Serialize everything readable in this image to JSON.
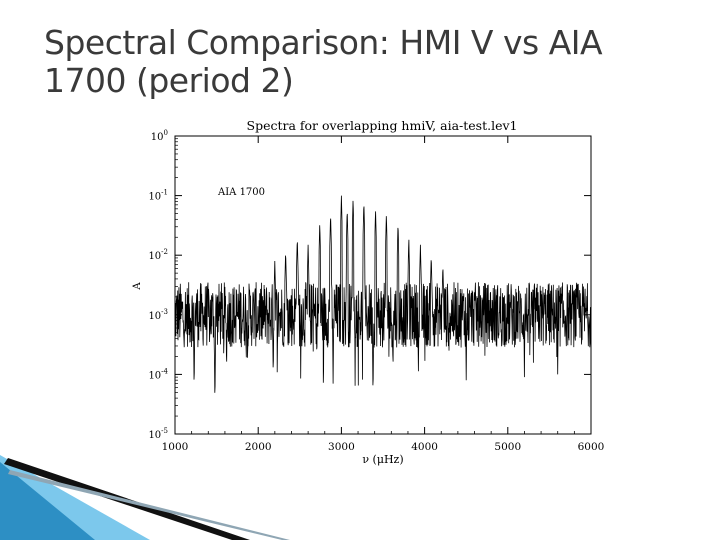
{
  "slide": {
    "title_line1": "Spectral Comparison: HMI V vs AIA",
    "title_line2": "1700 (period 2)"
  },
  "colors": {
    "accent_dark": "#0b4f7a",
    "accent_light": "#6cc4ea",
    "plot_ink": "#000000",
    "title_text": "#3a3a3a"
  },
  "chart_data": {
    "type": "line",
    "title": "Spectra for overlapping hmiV, aia-test.lev1",
    "annotation": "AIA 1700",
    "xlabel": "ν (μHz)",
    "ylabel": "A",
    "xlim": [
      1000,
      6000
    ],
    "ylim": [
      1e-05,
      1
    ],
    "yscale": "log",
    "x_ticks": [
      1000,
      2000,
      3000,
      4000,
      5000,
      6000
    ],
    "x_tick_labels": [
      "1000",
      "2000",
      "3000",
      "4000",
      "5000",
      "6000"
    ],
    "y_ticks": [
      1,
      0.1,
      0.01,
      0.001,
      0.0001,
      1e-05
    ],
    "y_tick_labels": [
      {
        "base": "10",
        "exp": "0"
      },
      {
        "base": "10",
        "exp": "-1"
      },
      {
        "base": "10",
        "exp": "-2"
      },
      {
        "base": "10",
        "exp": "-3"
      },
      {
        "base": "10",
        "exp": "-4"
      },
      {
        "base": "10",
        "exp": "-5"
      }
    ],
    "series": [
      {
        "name": "AIA 1700 spectrum",
        "noise_floor": 0.001,
        "noise_band": [
          0.0005,
          0.005
        ],
        "peaks": [
          {
            "x": 2200,
            "y": 0.008
          },
          {
            "x": 2330,
            "y": 0.012
          },
          {
            "x": 2470,
            "y": 0.02
          },
          {
            "x": 2600,
            "y": 0.015
          },
          {
            "x": 2740,
            "y": 0.035
          },
          {
            "x": 2870,
            "y": 0.05
          },
          {
            "x": 3000,
            "y": 0.1
          },
          {
            "x": 3070,
            "y": 0.06
          },
          {
            "x": 3140,
            "y": 0.09
          },
          {
            "x": 3270,
            "y": 0.08
          },
          {
            "x": 3410,
            "y": 0.06
          },
          {
            "x": 3540,
            "y": 0.05
          },
          {
            "x": 3680,
            "y": 0.035
          },
          {
            "x": 3810,
            "y": 0.02
          },
          {
            "x": 3950,
            "y": 0.015
          },
          {
            "x": 4080,
            "y": 0.01
          },
          {
            "x": 4220,
            "y": 0.007
          }
        ],
        "dips": [
          {
            "x": 1230,
            "y": 5e-05
          },
          {
            "x": 1480,
            "y": 3e-05
          },
          {
            "x": 1620,
            "y": 0.0001
          },
          {
            "x": 2180,
            "y": 8e-05
          },
          {
            "x": 2900,
            "y": 7e-05
          },
          {
            "x": 3380,
            "y": 4e-05
          },
          {
            "x": 3620,
            "y": 0.0001
          },
          {
            "x": 4500,
            "y": 8e-05
          },
          {
            "x": 5200,
            "y": 9e-05
          },
          {
            "x": 5600,
            "y": 0.0001
          }
        ]
      }
    ]
  }
}
